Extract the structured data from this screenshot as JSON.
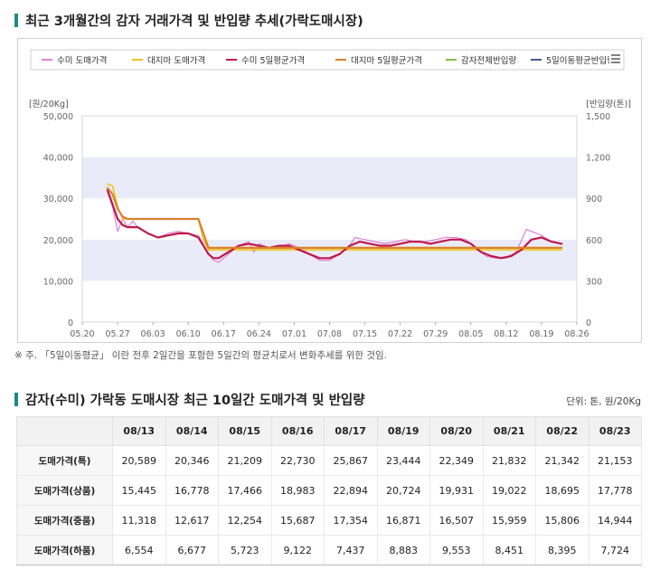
{
  "chart_section": {
    "title": "최근 3개월간의 감자 거래가격 및 반입량 추세(가락도매시장)",
    "note": "※ 주. 「5일이동평균」 이란 전후 2일간을 포함한 5일간의 평균치로서 변화추세를 위한 것임."
  },
  "chart_data": {
    "type": "line",
    "ylabel": "[원/20Kg]",
    "y2label": "[반입량(톤)]",
    "ylim": [
      0,
      50000
    ],
    "y2lim": [
      0,
      1500
    ],
    "yticks": [
      "0",
      "10,000",
      "20,000",
      "30,000",
      "40,000",
      "50,000"
    ],
    "y2ticks": [
      "0",
      "300",
      "600",
      "900",
      "1,200",
      "1,500"
    ],
    "xticks": [
      "05.20",
      "05.27",
      "06.03",
      "06.10",
      "06.17",
      "06.24",
      "07.01",
      "07.08",
      "07.15",
      "07.22",
      "07.29",
      "08.05",
      "08.12",
      "08.19",
      "08.26"
    ],
    "xlim": [
      "05.20",
      "08.26"
    ],
    "legend_position": "top",
    "legend": [
      "수미 도매가격",
      "대지마 도매가격",
      "수미 5일평균가격",
      "대지마 5일평균가격",
      "감자전체반입량",
      "5일이동평균반입량"
    ],
    "series": [
      {
        "name": "수미 도매가격",
        "color": "#e07fd8",
        "points": [
          [
            "05.25",
            31500
          ],
          [
            "05.26",
            28000
          ],
          [
            "05.27",
            22000
          ],
          [
            "05.28",
            25000
          ],
          [
            "05.29",
            23000
          ],
          [
            "05.30",
            24500
          ],
          [
            "05.31",
            23000
          ],
          [
            "06.02",
            21500
          ],
          [
            "06.04",
            20500
          ],
          [
            "06.06",
            21500
          ],
          [
            "06.08",
            22000
          ],
          [
            "06.10",
            21500
          ],
          [
            "06.12",
            21000
          ],
          [
            "06.14",
            16500
          ],
          [
            "06.15",
            15000
          ],
          [
            "06.16",
            14500
          ],
          [
            "06.18",
            16500
          ],
          [
            "06.20",
            18500
          ],
          [
            "06.22",
            19500
          ],
          [
            "06.23",
            17000
          ],
          [
            "06.24",
            19000
          ],
          [
            "06.26",
            18000
          ],
          [
            "06.28",
            18000
          ],
          [
            "06.30",
            19000
          ],
          [
            "07.02",
            18000
          ],
          [
            "07.04",
            16500
          ],
          [
            "07.06",
            15000
          ],
          [
            "07.08",
            15000
          ],
          [
            "07.10",
            16500
          ],
          [
            "07.12",
            18500
          ],
          [
            "07.13",
            20500
          ],
          [
            "07.15",
            20000
          ],
          [
            "07.17",
            19500
          ],
          [
            "07.19",
            19000
          ],
          [
            "07.21",
            19500
          ],
          [
            "07.23",
            20000
          ],
          [
            "07.25",
            19500
          ],
          [
            "07.27",
            19500
          ],
          [
            "07.29",
            20000
          ],
          [
            "07.31",
            20500
          ],
          [
            "08.02",
            20500
          ],
          [
            "08.04",
            20000
          ],
          [
            "08.06",
            18000
          ],
          [
            "08.08",
            16000
          ],
          [
            "08.10",
            15500
          ],
          [
            "08.12",
            15500
          ],
          [
            "08.14",
            17000
          ],
          [
            "08.16",
            22500
          ],
          [
            "08.17",
            22000
          ],
          [
            "08.19",
            21000
          ],
          [
            "08.21",
            19500
          ],
          [
            "08.23",
            19000
          ]
        ]
      },
      {
        "name": "대지마 도매가격",
        "color": "#f0c419",
        "points": [
          [
            "05.25",
            33500
          ],
          [
            "05.26",
            33000
          ],
          [
            "05.27",
            28000
          ],
          [
            "05.28",
            25000
          ],
          [
            "05.29",
            25000
          ],
          [
            "06.12",
            25000
          ],
          [
            "06.13",
            20000
          ],
          [
            "06.14",
            17500
          ],
          [
            "08.23",
            17500
          ]
        ]
      },
      {
        "name": "수미 5일평균가격",
        "color": "#c0184a",
        "points": [
          [
            "05.25",
            32000
          ],
          [
            "05.26",
            28500
          ],
          [
            "05.27",
            25000
          ],
          [
            "05.28",
            23500
          ],
          [
            "05.29",
            23000
          ],
          [
            "05.31",
            23000
          ],
          [
            "06.02",
            21500
          ],
          [
            "06.04",
            20500
          ],
          [
            "06.06",
            21000
          ],
          [
            "06.08",
            21500
          ],
          [
            "06.10",
            21500
          ],
          [
            "06.12",
            20500
          ],
          [
            "06.13",
            18500
          ],
          [
            "06.14",
            16500
          ],
          [
            "06.15",
            15500
          ],
          [
            "06.16",
            15500
          ],
          [
            "06.18",
            17000
          ],
          [
            "06.20",
            18500
          ],
          [
            "06.22",
            19000
          ],
          [
            "06.24",
            18500
          ],
          [
            "06.26",
            18000
          ],
          [
            "06.28",
            18500
          ],
          [
            "06.30",
            18500
          ],
          [
            "07.02",
            17500
          ],
          [
            "07.04",
            16500
          ],
          [
            "07.06",
            15500
          ],
          [
            "07.08",
            15500
          ],
          [
            "07.10",
            16500
          ],
          [
            "07.12",
            18500
          ],
          [
            "07.14",
            19500
          ],
          [
            "07.16",
            19000
          ],
          [
            "07.18",
            18500
          ],
          [
            "07.20",
            18500
          ],
          [
            "07.22",
            19000
          ],
          [
            "07.24",
            19500
          ],
          [
            "07.26",
            19500
          ],
          [
            "07.28",
            19000
          ],
          [
            "07.30",
            19500
          ],
          [
            "08.01",
            20000
          ],
          [
            "08.03",
            20000
          ],
          [
            "08.05",
            19000
          ],
          [
            "08.07",
            17000
          ],
          [
            "08.09",
            16000
          ],
          [
            "08.11",
            15500
          ],
          [
            "08.13",
            16000
          ],
          [
            "08.15",
            17500
          ],
          [
            "08.17",
            20000
          ],
          [
            "08.19",
            20500
          ],
          [
            "08.21",
            19500
          ],
          [
            "08.23",
            19000
          ]
        ]
      },
      {
        "name": "대지마 5일평균가격",
        "color": "#d9812b",
        "points": [
          [
            "05.25",
            32500
          ],
          [
            "05.26",
            31000
          ],
          [
            "05.27",
            27500
          ],
          [
            "05.28",
            25500
          ],
          [
            "05.29",
            25000
          ],
          [
            "06.12",
            25000
          ],
          [
            "06.13",
            21500
          ],
          [
            "06.14",
            18000
          ],
          [
            "08.23",
            18000
          ]
        ]
      }
    ]
  },
  "table_section": {
    "title": "감자(수미) 가락동 도매시장 최근 10일간 도매가격 및 반입량",
    "unit": "단위: 톤, 원/20Kg",
    "columns": [
      "08/13",
      "08/14",
      "08/15",
      "08/16",
      "08/17",
      "08/19",
      "08/20",
      "08/21",
      "08/22",
      "08/23"
    ],
    "rows": [
      {
        "label": "도매가격(특)",
        "values": [
          "20,589",
          "20,346",
          "21,209",
          "22,730",
          "25,867",
          "23,444",
          "22,349",
          "21,832",
          "21,342",
          "21,153"
        ]
      },
      {
        "label": "도매가격(상품)",
        "values": [
          "15,445",
          "16,778",
          "17,466",
          "18,983",
          "22,894",
          "20,724",
          "19,931",
          "19,022",
          "18,695",
          "17,778"
        ]
      },
      {
        "label": "도매가격(중품)",
        "values": [
          "11,318",
          "12,617",
          "12,254",
          "15,687",
          "17,354",
          "16,871",
          "16,507",
          "15,959",
          "15,806",
          "14,944"
        ]
      },
      {
        "label": "도매가격(하품)",
        "values": [
          "6,554",
          "6,677",
          "5,723",
          "9,122",
          "7,437",
          "8,883",
          "9,553",
          "8,451",
          "8,395",
          "7,724"
        ]
      }
    ]
  }
}
